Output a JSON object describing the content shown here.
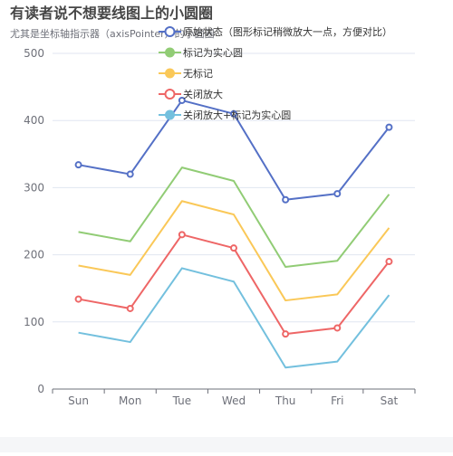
{
  "chart_data": {
    "type": "line",
    "title": "有读者说不想要线图上的小圆圈",
    "subtitle": "尤其是坐标轴指示器（axisPointer）的小圆圈",
    "categories": [
      "Sun",
      "Mon",
      "Tue",
      "Wed",
      "Thu",
      "Fri",
      "Sat"
    ],
    "ylim": [
      0,
      500
    ],
    "yticks": [
      0,
      100,
      200,
      300,
      400,
      500
    ],
    "grid": true,
    "legend_position": "top",
    "series": [
      {
        "name": "原始状态（图形标记稍微放大一点，方便对比）",
        "color": "#5470c6",
        "symbol": "hollow",
        "values": [
          334,
          320,
          430,
          410,
          282,
          291,
          390
        ]
      },
      {
        "name": "标记为实心圆",
        "color": "#91cc75",
        "symbol": "none",
        "values": [
          234,
          220,
          330,
          310,
          182,
          191,
          290
        ]
      },
      {
        "name": "无标记",
        "color": "#fac858",
        "symbol": "none",
        "values": [
          184,
          170,
          280,
          260,
          132,
          141,
          240
        ]
      },
      {
        "name": "关闭放大",
        "color": "#ee6666",
        "symbol": "hollow",
        "values": [
          134,
          120,
          230,
          210,
          82,
          91,
          190
        ]
      },
      {
        "name": "关闭放大+标记为实心圆",
        "color": "#73c0de",
        "symbol": "none",
        "values": [
          84,
          70,
          180,
          160,
          32,
          41,
          140
        ]
      }
    ]
  }
}
